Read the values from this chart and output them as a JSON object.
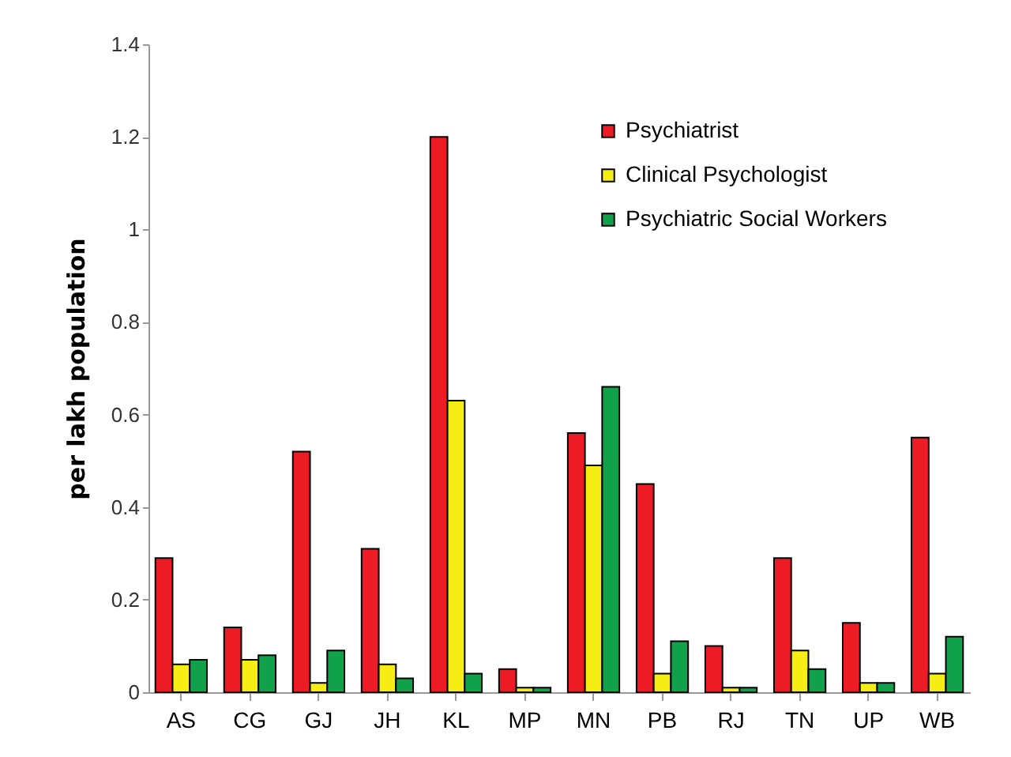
{
  "chart_data": {
    "type": "bar",
    "ylabel": "per lakh population",
    "categories": [
      "AS",
      "CG",
      "GJ",
      "JH",
      "KL",
      "MP",
      "MN",
      "PB",
      "RJ",
      "TN",
      "UP",
      "WB"
    ],
    "series": [
      {
        "name": "Psychiatrist",
        "color": "#ed1c24",
        "values": [
          0.29,
          0.14,
          0.52,
          0.31,
          1.2,
          0.05,
          0.56,
          0.45,
          0.1,
          0.29,
          0.15,
          0.55
        ]
      },
      {
        "name": "Clinical Psychologist",
        "color": "#f5ed14",
        "values": [
          0.06,
          0.07,
          0.02,
          0.06,
          0.63,
          0.01,
          0.49,
          0.04,
          0.01,
          0.09,
          0.02,
          0.04
        ]
      },
      {
        "name": "Psychiatric  Social Workers",
        "color": "#12a14b",
        "values": [
          0.07,
          0.08,
          0.09,
          0.03,
          0.04,
          0.01,
          0.66,
          0.11,
          0.01,
          0.05,
          0.02,
          0.12
        ]
      }
    ],
    "ylim": [
      0,
      1.4
    ],
    "yticks": [
      0,
      0.2,
      0.4,
      0.6,
      0.8,
      1,
      1.2,
      1.4
    ],
    "grid": false,
    "legend": "top right"
  }
}
